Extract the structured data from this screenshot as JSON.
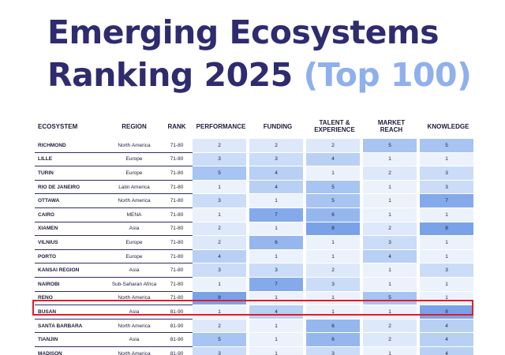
{
  "title": {
    "line1": "Emerging Ecosystems",
    "line2_main": "Ranking 2025",
    "line2_accent": "(Top 100)"
  },
  "table": {
    "headers": {
      "ecosystem": "ECOSYSTEM",
      "region": "REGION",
      "rank": "RANK",
      "performance": "PERFORMANCE",
      "funding": "FUNDING",
      "talent_line1": "TALENT &",
      "talent_line2": "EXPERIENCE",
      "market_line1": "MARKET",
      "market_line2": "REACH",
      "knowledge": "KNOWLEDGE"
    },
    "rows": [
      {
        "ecosystem": "RICHMOND",
        "region": "North America",
        "rank": "71-80",
        "performance": 2,
        "funding": 2,
        "talent": 2,
        "market": 5,
        "knowledge": 5
      },
      {
        "ecosystem": "LILLE",
        "region": "Europe",
        "rank": "71-80",
        "performance": 3,
        "funding": 3,
        "talent": 4,
        "market": 1,
        "knowledge": 1
      },
      {
        "ecosystem": "TURIN",
        "region": "Europe",
        "rank": "71-80",
        "performance": 5,
        "funding": 4,
        "talent": 1,
        "market": 2,
        "knowledge": 3
      },
      {
        "ecosystem": "RIO DE JANEIRO",
        "region": "Latin America",
        "rank": "71-80",
        "performance": 1,
        "funding": 4,
        "talent": 5,
        "market": 1,
        "knowledge": 3
      },
      {
        "ecosystem": "OTTAWA",
        "region": "North America",
        "rank": "71-80",
        "performance": 3,
        "funding": 1,
        "talent": 5,
        "market": 1,
        "knowledge": 7
      },
      {
        "ecosystem": "CAIRO",
        "region": "MENA",
        "rank": "71-80",
        "performance": 1,
        "funding": 7,
        "talent": 6,
        "market": 1,
        "knowledge": 1
      },
      {
        "ecosystem": "XIAMEN",
        "region": "Asia",
        "rank": "71-80",
        "performance": 2,
        "funding": 1,
        "talent": 8,
        "market": 2,
        "knowledge": 8
      },
      {
        "ecosystem": "VILNIUS",
        "region": "Europe",
        "rank": "71-80",
        "performance": 2,
        "funding": 6,
        "talent": 1,
        "market": 3,
        "knowledge": 1
      },
      {
        "ecosystem": "PORTO",
        "region": "Europe",
        "rank": "71-80",
        "performance": 4,
        "funding": 1,
        "talent": 1,
        "market": 4,
        "knowledge": 1
      },
      {
        "ecosystem": "KANSAI REGION",
        "region": "Asia",
        "rank": "71-80",
        "performance": 3,
        "funding": 3,
        "talent": 2,
        "market": 1,
        "knowledge": 3
      },
      {
        "ecosystem": "NAIROBI",
        "region": "Sub-Saharan Africa",
        "rank": "71-80",
        "performance": 1,
        "funding": 7,
        "talent": 3,
        "market": 1,
        "knowledge": 1
      },
      {
        "ecosystem": "RENO",
        "region": "North America",
        "rank": "71-80",
        "performance": 8,
        "funding": 1,
        "talent": 1,
        "market": 5,
        "knowledge": 1
      },
      {
        "ecosystem": "BUSAN",
        "region": "Asia",
        "rank": "81-90",
        "performance": 1,
        "funding": 4,
        "talent": 1,
        "market": 1,
        "knowledge": 8,
        "highlighted": true
      },
      {
        "ecosystem": "SANTA BARBARA",
        "region": "North America",
        "rank": "81-90",
        "performance": 2,
        "funding": 1,
        "talent": 6,
        "market": 2,
        "knowledge": 4
      },
      {
        "ecosystem": "TIANJIN",
        "region": "Asia",
        "rank": "81-90",
        "performance": 5,
        "funding": 1,
        "talent": 6,
        "market": 2,
        "knowledge": 4
      },
      {
        "ecosystem": "MADISON",
        "region": "North America",
        "rank": "81-90",
        "performance": 3,
        "funding": 1,
        "talent": 3,
        "market": 1,
        "knowledge": 4
      }
    ]
  },
  "colors": {
    "title": "#2e2c6e",
    "title_accent": "#8fb0ec",
    "highlight_border": "#e21c2a",
    "cell_scale": [
      "#ecf2fc",
      "#dde8fa",
      "#cadcf7",
      "#b9d0f5",
      "#a7c4f2",
      "#95b7ee",
      "#84aaeb",
      "#7aa2e8"
    ]
  }
}
